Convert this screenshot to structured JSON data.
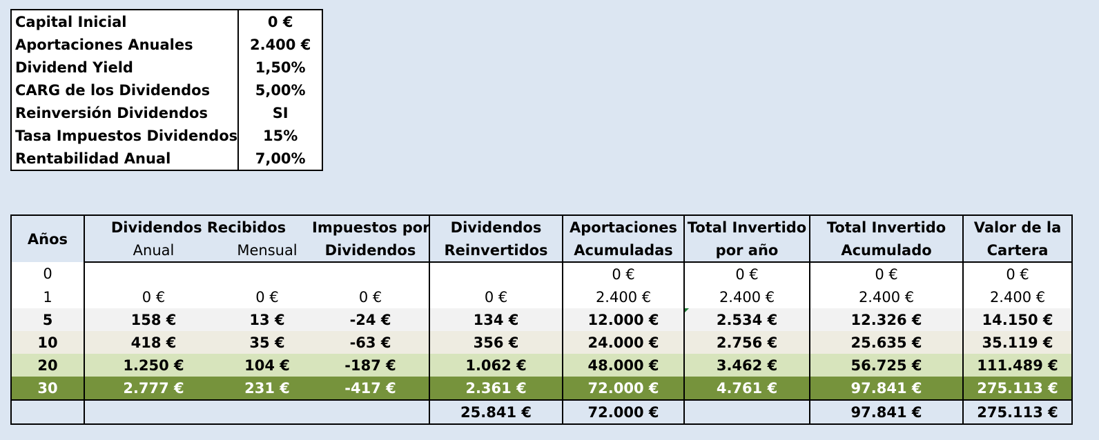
{
  "params": [
    {
      "label": "Capital Inicial",
      "value": "0 €"
    },
    {
      "label": "Aportaciones Anuales",
      "value": "2.400 €"
    },
    {
      "label": "Dividend Yield",
      "value": "1,50%"
    },
    {
      "label": "CARG de los Dividendos",
      "value": "5,00%"
    },
    {
      "label": "Reinversión Dividendos",
      "value": "SI"
    },
    {
      "label": "Tasa Impuestos Dividendos",
      "value": "15%"
    },
    {
      "label": "Rentabilidad Anual",
      "value": "7,00%"
    }
  ],
  "headers": {
    "years": "Años",
    "dividends": "Dividendos Recibidos",
    "annual": "Anual",
    "monthly": "Mensual",
    "taxes_1": "Impuestos por",
    "taxes_2": "Dividendos",
    "reinvested_1": "Dividendos",
    "reinvested_2": "Reinvertidos",
    "contrib_1": "Aportaciones",
    "contrib_2": "Acumuladas",
    "total_year_1": "Total Invertido",
    "total_year_2": "por año",
    "total_acc_1": "Total Invertido",
    "total_acc_2": "Acumulado",
    "portfolio_1": "Valor de la",
    "portfolio_2": "Cartera"
  },
  "rows": [
    {
      "year": "0",
      "annual": "",
      "monthly": "",
      "taxes": "",
      "reinvested": "",
      "contrib": "0 €",
      "total_year": "0 €",
      "total_acc": "0 €",
      "portfolio": "0 €"
    },
    {
      "year": "1",
      "annual": "0 €",
      "monthly": "0 €",
      "taxes": "0 €",
      "reinvested": "0 €",
      "contrib": "2.400 €",
      "total_year": "2.400 €",
      "total_acc": "2.400 €",
      "portfolio": "2.400 €"
    },
    {
      "year": "5",
      "annual": "158 €",
      "monthly": "13 €",
      "taxes": "-24 €",
      "reinvested": "134 €",
      "contrib": "12.000 €",
      "total_year": "2.534 €",
      "total_acc": "12.326 €",
      "portfolio": "14.150 €"
    },
    {
      "year": "10",
      "annual": "418 €",
      "monthly": "35 €",
      "taxes": "-63 €",
      "reinvested": "356 €",
      "contrib": "24.000 €",
      "total_year": "2.756 €",
      "total_acc": "25.635 €",
      "portfolio": "35.119 €"
    },
    {
      "year": "20",
      "annual": "1.250 €",
      "monthly": "104 €",
      "taxes": "-187 €",
      "reinvested": "1.062 €",
      "contrib": "48.000 €",
      "total_year": "3.462 €",
      "total_acc": "56.725 €",
      "portfolio": "111.489 €"
    },
    {
      "year": "30",
      "annual": "2.777 €",
      "monthly": "231 €",
      "taxes": "-417 €",
      "reinvested": "2.361 €",
      "contrib": "72.000 €",
      "total_year": "4.761 €",
      "total_acc": "97.841 €",
      "portfolio": "275.113 €"
    }
  ],
  "totals": {
    "reinvested": "25.841 €",
    "contrib": "72.000 €",
    "total_acc": "97.841 €",
    "portfolio": "275.113 €"
  },
  "colors": {
    "background": "#dce6f2",
    "row_grey": "#f2f2f2",
    "row_beige": "#eeece1",
    "row_light_green": "#d7e4bc",
    "row_dark_green": "#76933c"
  }
}
